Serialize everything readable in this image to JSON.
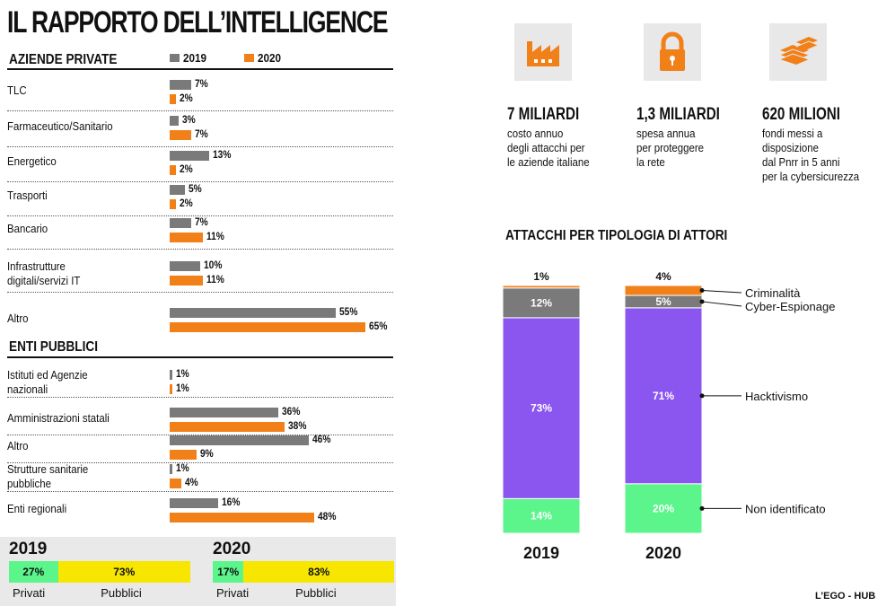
{
  "title": "IL RAPPORTO DELL’INTELLIGENCE",
  "colors": {
    "gray": "#7a7a7a",
    "orange": "#f28019",
    "purple": "#8b55f0",
    "green": "#5bf58c",
    "yellow": "#f7e600",
    "icon_orange": "#f28019"
  },
  "legend": {
    "y2019": "2019",
    "y2020": "2020"
  },
  "sections": {
    "private": "AZIENDE PRIVATE",
    "public": "ENTI PUBBLICI"
  },
  "chart_data": [
    {
      "type": "bar",
      "title": "AZIENDE PRIVATE",
      "categories": [
        "TLC",
        "Farmaceutico/Sanitario",
        "Energetico",
        "Trasporti",
        "Bancario",
        "Infrastrutture digitali/servizi IT",
        "Altro"
      ],
      "series": [
        {
          "name": "2019",
          "values": [
            7,
            3,
            13,
            5,
            7,
            10,
            55
          ]
        },
        {
          "name": "2020",
          "values": [
            2,
            7,
            2,
            2,
            11,
            11,
            65
          ]
        }
      ]
    },
    {
      "type": "bar",
      "title": "ENTI PUBBLICI",
      "categories": [
        "Istituti ed Agenzie nazionali",
        "Amministrazioni statali",
        "Altro",
        "Strutture sanitarie pubbliche",
        "Enti regionali"
      ],
      "series": [
        {
          "name": "2019",
          "values": [
            1,
            36,
            46,
            1,
            16
          ]
        },
        {
          "name": "2020",
          "values": [
            1,
            38,
            9,
            4,
            48
          ]
        }
      ]
    },
    {
      "type": "bar",
      "title": "ATTACCHI PER TIPOLOGIA DI ATTORI",
      "stacked": true,
      "categories": [
        "2019",
        "2020"
      ],
      "series": [
        {
          "name": "Non identificato",
          "values": [
            14,
            20
          ]
        },
        {
          "name": "Hacktivismo",
          "values": [
            73,
            71
          ]
        },
        {
          "name": "Cyber-Espionage",
          "values": [
            12,
            5
          ]
        },
        {
          "name": "Criminalità",
          "values": [
            1,
            4
          ]
        }
      ]
    },
    {
      "type": "bar",
      "stacked": true,
      "horizontal": true,
      "categories": [
        "2019",
        "2020"
      ],
      "series": [
        {
          "name": "Privati",
          "values": [
            27,
            17
          ]
        },
        {
          "name": "Pubblici",
          "values": [
            73,
            83
          ]
        }
      ]
    }
  ],
  "labels_private": [
    [
      "TLC"
    ],
    [
      "Farmaceutico/Sanitario"
    ],
    [
      "Energetico"
    ],
    [
      "Trasporti"
    ],
    [
      "Bancario"
    ],
    [
      "Infrastrutture",
      "digitali/servizi IT"
    ],
    [
      "Altro"
    ]
  ],
  "labels_public": [
    [
      "Istituti ed Agenzie",
      "nazionali"
    ],
    [
      "Amministrazioni statali"
    ],
    [
      "Altro"
    ],
    [
      "Strutture sanitarie",
      "pubbliche"
    ],
    [
      "Enti regionali"
    ]
  ],
  "stats": [
    {
      "icon": "factory-icon",
      "value": "7 MILIARDI",
      "text": "costo annuo\ndegli attacchi per\nle aziende italiane"
    },
    {
      "icon": "padlock-icon",
      "value": "1,3 MILIARDI",
      "text": "spesa annua\nper proteggere\nla rete"
    },
    {
      "icon": "banknotes-icon",
      "value": "620 MILIONI",
      "text": "fondi messi a disposizione\ndal Pnrr in 5 anni\nper la cybersicurezza"
    }
  ],
  "footer": {
    "y2019": "2019",
    "y2020": "2020",
    "privati": "Privati",
    "pubblici": "Pubblici"
  },
  "credit": "L’EGO - HUB"
}
